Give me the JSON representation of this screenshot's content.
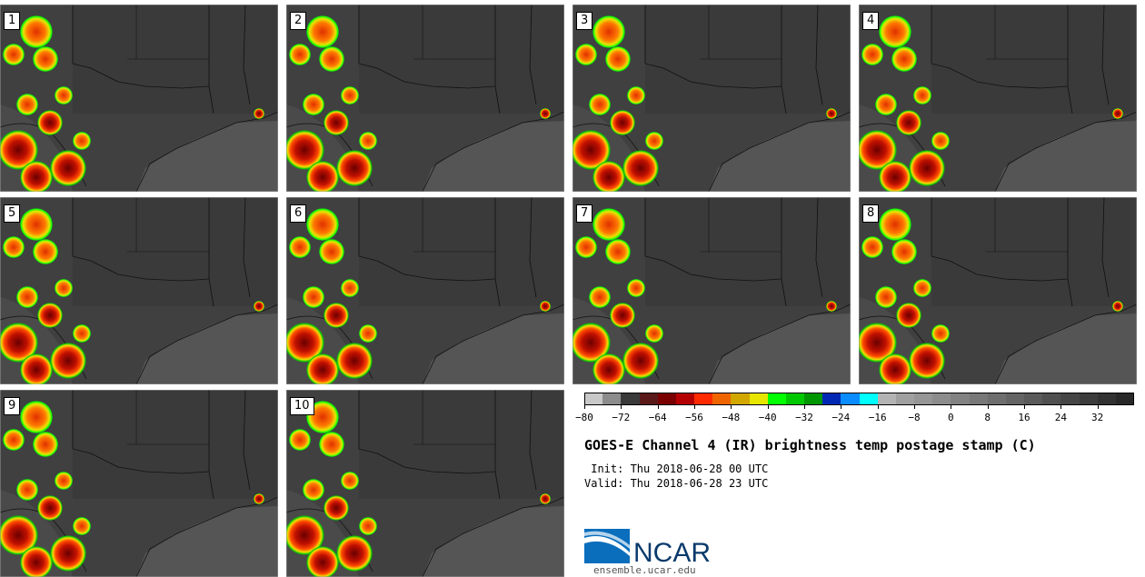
{
  "panels": [
    {
      "label": "1"
    },
    {
      "label": "2"
    },
    {
      "label": "3"
    },
    {
      "label": "4"
    },
    {
      "label": "5"
    },
    {
      "label": "6"
    },
    {
      "label": "7"
    },
    {
      "label": "8"
    },
    {
      "label": "9"
    },
    {
      "label": "10"
    }
  ],
  "colorbar": {
    "colors": [
      "#c8c8c8",
      "#8c8c8c",
      "#3a3a3a",
      "#5a1a1a",
      "#7a0000",
      "#b40000",
      "#ff2a00",
      "#f06400",
      "#d2a800",
      "#e6e600",
      "#00ff00",
      "#00c800",
      "#009600",
      "#0028b4",
      "#0a8cff",
      "#00ffff",
      "#b4b4b4",
      "#a0a0a0",
      "#969696",
      "#8c8c8c",
      "#828282",
      "#787878",
      "#6e6e6e",
      "#646464",
      "#5a5a5a",
      "#505050",
      "#464646",
      "#3c3c3c",
      "#323232",
      "#282828"
    ],
    "tick_labels": [
      "−80",
      "−72",
      "−64",
      "−56",
      "−48",
      "−40",
      "−32",
      "−24",
      "−16",
      "−8",
      "0",
      "8",
      "16",
      "24",
      "32"
    ],
    "tick_values": [
      -80,
      -72,
      -64,
      -56,
      -48,
      -40,
      -32,
      -24,
      -16,
      -8,
      0,
      8,
      16,
      24,
      32
    ],
    "range": [
      -80,
      40
    ]
  },
  "title": "GOES-E Channel 4 (IR) brightness temp postage stamp (C)",
  "init": " Init: Thu 2018-06-28 00 UTC",
  "valid": "Valid: Thu 2018-06-28 23 UTC",
  "logo": {
    "text": "NCAR",
    "url": "ensemble.ucar.edu"
  }
}
